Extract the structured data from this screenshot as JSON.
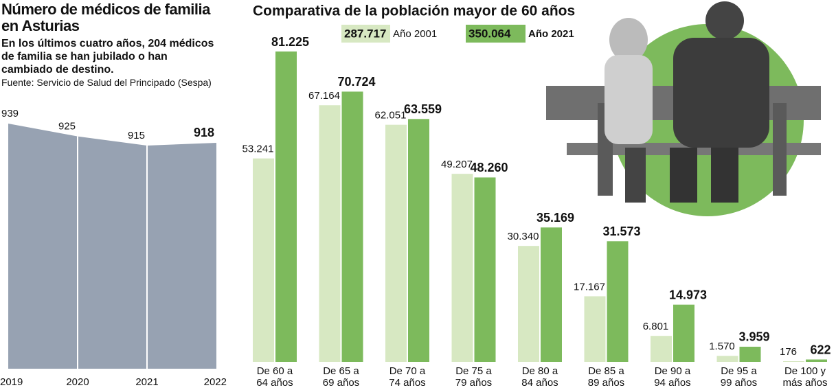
{
  "chart_data": [
    {
      "type": "area",
      "title": "Número de médicos de familia en Asturias",
      "subtitle": "En los últimos cuatro años, 204 médicos de familia se han jubilado o han cambiado de destino.",
      "source": "Fuente: Servicio de Salud del Principado (Sespa)",
      "categories": [
        "2019",
        "2020",
        "2021",
        "2022"
      ],
      "values": [
        939,
        925,
        915,
        918
      ],
      "color": "#97a2b2"
    },
    {
      "type": "bar",
      "title": "Comparativa de la población mayor de 60 años",
      "categories": [
        "De 60 a\n64 años",
        "De 65 a\n69 años",
        "De 70 a\n74 años",
        "De 75 a\n79 años",
        "De 80 a\n84 años",
        "De 85 a\n89 años",
        "De 90 a\n94 años",
        "De 95 a\n99 años",
        "De 100 y\nmás años"
      ],
      "series": [
        {
          "name": "Año 2001",
          "color": "#d7e8c2",
          "total": 287717,
          "total_label": "287.717",
          "values": [
            53241,
            67164,
            62051,
            49207,
            30340,
            17167,
            6801,
            1570,
            176
          ],
          "value_labels": [
            "53.241",
            "67.164",
            "62.051",
            "49.207",
            "30.340",
            "17.167",
            "6.801",
            "1.570",
            "176"
          ]
        },
        {
          "name": "Año 2021",
          "color": "#7dba5c",
          "total": 350064,
          "total_label": "350.064",
          "values": [
            81225,
            70724,
            63559,
            48260,
            35169,
            31573,
            14973,
            3959,
            622
          ],
          "value_labels": [
            "81.225",
            "70.724",
            "63.559",
            "48.260",
            "35.169",
            "31.573",
            "14.973",
            "3.959",
            "622"
          ]
        }
      ]
    }
  ]
}
